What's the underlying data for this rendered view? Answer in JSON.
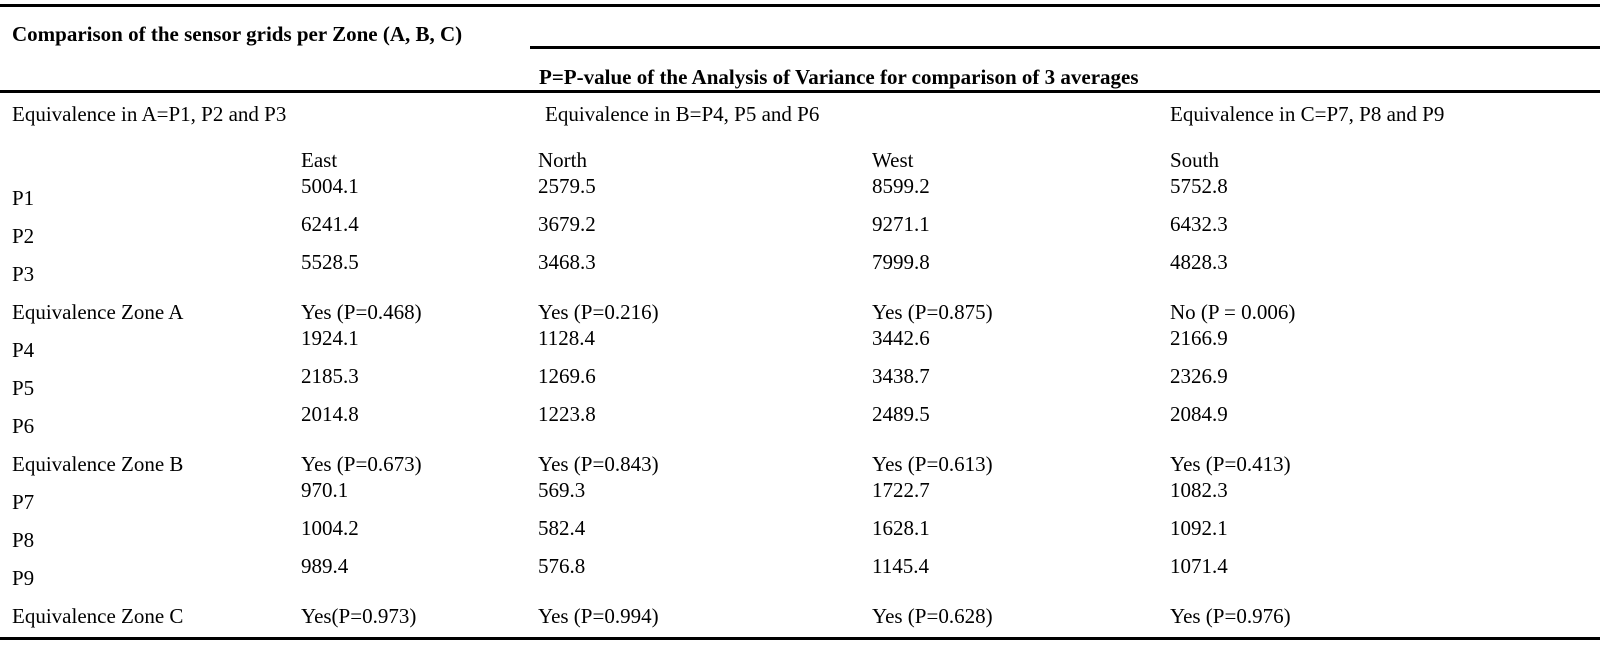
{
  "caption": "Comparison of the sensor grids per Zone (A, B, C)",
  "subheader": "P=P-value of the Analysis of Variance for comparison of 3 averages",
  "equivalence_definitions": [
    "Equivalence in A=P1, P2 and P3",
    "Equivalence in B=P4, P5 and P6",
    "Equivalence in C=P7, P8 and P9"
  ],
  "columns": [
    "East",
    "North",
    "West",
    "South"
  ],
  "rows": [
    {
      "label": "P1",
      "values": [
        "5004.1",
        "2579.5",
        "8599.2",
        "5752.8"
      ]
    },
    {
      "label": "P2",
      "values": [
        "6241.4",
        "3679.2",
        "9271.1",
        "6432.3"
      ]
    },
    {
      "label": "P3",
      "values": [
        "5528.5",
        "3468.3",
        "7999.8",
        "4828.3"
      ]
    },
    {
      "label": "Equivalence Zone A",
      "values": [
        "Yes (P=0.468)",
        "Yes (P=0.216)",
        "Yes (P=0.875)",
        "No (P = 0.006)"
      ]
    },
    {
      "label": "P4",
      "values": [
        "1924.1",
        "1128.4",
        "3442.6",
        "2166.9"
      ]
    },
    {
      "label": "P5",
      "values": [
        "2185.3",
        "1269.6",
        "3438.7",
        "2326.9"
      ]
    },
    {
      "label": "P6",
      "values": [
        "2014.8",
        "1223.8",
        "2489.5",
        "2084.9"
      ]
    },
    {
      "label": "Equivalence Zone B",
      "values": [
        "Yes (P=0.673)",
        "Yes (P=0.843)",
        "Yes (P=0.613)",
        "Yes (P=0.413)"
      ]
    },
    {
      "label": "P7",
      "values": [
        "970.1",
        "569.3",
        "1722.7",
        "1082.3"
      ]
    },
    {
      "label": "P8",
      "values": [
        "1004.2",
        "582.4",
        "1628.1",
        "1092.1"
      ]
    },
    {
      "label": "P9",
      "values": [
        "989.4",
        "576.8",
        "1145.4",
        "1071.4"
      ]
    },
    {
      "label": "Equivalence Zone C",
      "values": [
        "Yes(P=0.973)",
        "Yes (P=0.994)",
        "Yes (P=0.628)",
        "Yes (P=0.976)"
      ]
    }
  ]
}
